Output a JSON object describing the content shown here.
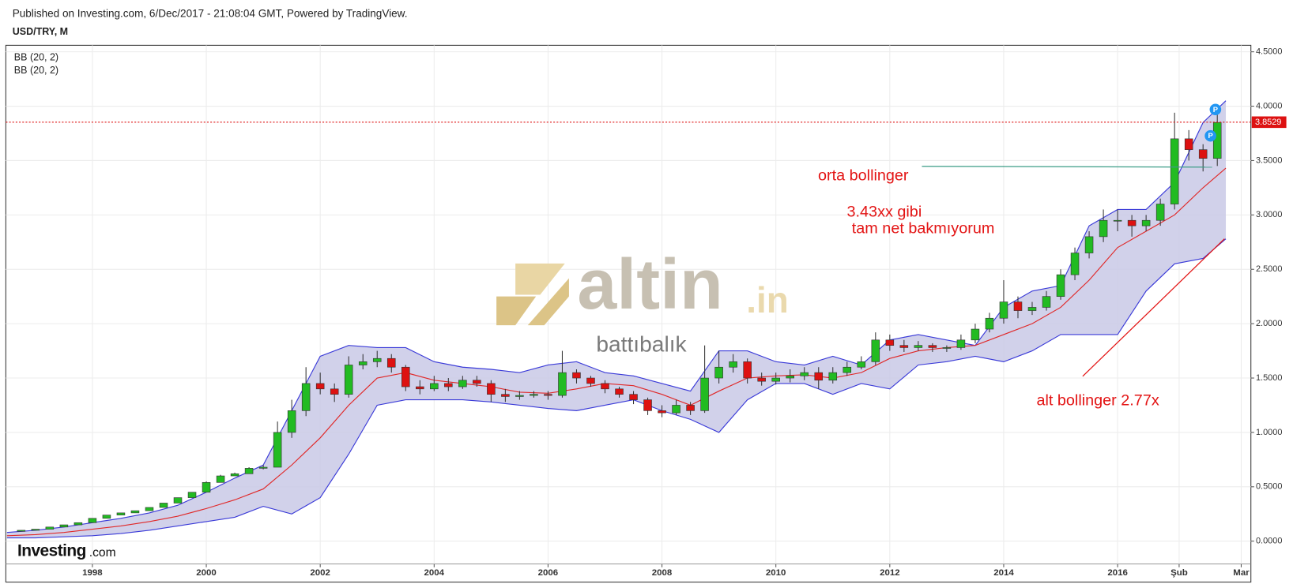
{
  "header": {
    "published": "Published on Investing.com, 6/Dec/2017 - 21:08:04 GMT, Powered by TradingView."
  },
  "watermark": {
    "brand": "altin",
    "suffix": ".in",
    "caption": "battıbalık",
    "logo": "Investing",
    "logo_suffix": ".com"
  },
  "chart_data": {
    "type": "candlestick",
    "title": "USD/TRY, M",
    "indicators": [
      "BB (20, 2)",
      "BB (20, 2)"
    ],
    "annotations": [
      "orta bollinger",
      "3.43xx gibi",
      "tam net bakmıyorum",
      "alt bollinger 2.77x"
    ],
    "markers": [
      "P",
      "P"
    ],
    "last_price": 3.8529,
    "up_color": "#22bb22",
    "down_color": "#dd1111",
    "grid": true,
    "xlim": [
      1996.48,
      2018.34
    ],
    "ylim": [
      -0.21,
      4.56
    ],
    "xticks": [
      1998,
      2000,
      2002,
      2004,
      2006,
      2008,
      2010,
      2012,
      2014,
      2016,
      {
        "value": 2017.08,
        "label": "Şub"
      },
      {
        "value": 2018.17,
        "label": "Mar"
      }
    ],
    "yticks": [
      {
        "value": 0,
        "label": "0.0000"
      },
      {
        "value": 0.5,
        "label": "0.5000"
      },
      {
        "value": 1,
        "label": "1.0000"
      },
      {
        "value": 1.5,
        "label": "1.5000"
      },
      {
        "value": 2,
        "label": "2.0000"
      },
      {
        "value": 2.5,
        "label": "2.5000"
      },
      {
        "value": 3,
        "label": "3.0000"
      },
      {
        "value": 3.5,
        "label": "3.5000"
      },
      {
        "value": 4,
        "label": "4.0000"
      },
      {
        "value": 4.5,
        "label": "4.5000"
      }
    ],
    "x": [
      1996.75,
      1997,
      1997.25,
      1997.5,
      1997.75,
      1998,
      1998.25,
      1998.5,
      1998.75,
      1999,
      1999.25,
      1999.5,
      1999.75,
      2000,
      2000.25,
      2000.5,
      2000.75,
      2001,
      2001.25,
      2001.5,
      2001.75,
      2002,
      2002.25,
      2002.5,
      2002.75,
      2003,
      2003.25,
      2003.5,
      2003.75,
      2004,
      2004.25,
      2004.5,
      2004.75,
      2005,
      2005.25,
      2005.5,
      2005.75,
      2006,
      2006.25,
      2006.5,
      2006.75,
      2007,
      2007.25,
      2007.5,
      2007.75,
      2008,
      2008.25,
      2008.5,
      2008.75,
      2009,
      2009.25,
      2009.5,
      2009.75,
      2010,
      2010.25,
      2010.5,
      2010.75,
      2011,
      2011.25,
      2011.5,
      2011.75,
      2012,
      2012.25,
      2012.5,
      2012.75,
      2013,
      2013.25,
      2013.5,
      2013.75,
      2014,
      2014.25,
      2014.5,
      2014.75,
      2015,
      2015.25,
      2015.5,
      2015.75,
      2016,
      2016.25,
      2016.5,
      2016.75,
      2017,
      2017.25,
      2017.5,
      2017.75
    ],
    "open": [
      0.09,
      0.1,
      0.11,
      0.13,
      0.15,
      0.17,
      0.21,
      0.24,
      0.26,
      0.28,
      0.31,
      0.35,
      0.4,
      0.45,
      0.54,
      0.6,
      0.62,
      0.67,
      0.68,
      1.0,
      1.2,
      1.45,
      1.4,
      1.35,
      1.62,
      1.65,
      1.68,
      1.6,
      1.42,
      1.4,
      1.45,
      1.42,
      1.48,
      1.45,
      1.35,
      1.33,
      1.34,
      1.35,
      1.34,
      1.55,
      1.5,
      1.45,
      1.4,
      1.35,
      1.3,
      1.2,
      1.18,
      1.25,
      1.2,
      1.5,
      1.6,
      1.65,
      1.5,
      1.47,
      1.5,
      1.52,
      1.55,
      1.48,
      1.55,
      1.6,
      1.65,
      1.85,
      1.8,
      1.78,
      1.8,
      1.78,
      1.78,
      1.85,
      1.95,
      2.05,
      2.2,
      2.12,
      2.15,
      2.25,
      2.45,
      2.65,
      2.8,
      2.95,
      2.95,
      2.9,
      2.95,
      3.1,
      3.7,
      3.6,
      3.52
    ],
    "high": [
      0.1,
      0.11,
      0.13,
      0.15,
      0.17,
      0.21,
      0.24,
      0.26,
      0.28,
      0.31,
      0.35,
      0.4,
      0.45,
      0.55,
      0.61,
      0.63,
      0.68,
      0.7,
      1.1,
      1.3,
      1.6,
      1.55,
      1.45,
      1.7,
      1.72,
      1.75,
      1.72,
      1.62,
      1.48,
      1.52,
      1.5,
      1.52,
      1.52,
      1.48,
      1.4,
      1.38,
      1.38,
      1.38,
      1.75,
      1.58,
      1.52,
      1.48,
      1.42,
      1.38,
      1.32,
      1.25,
      1.3,
      1.28,
      1.8,
      1.75,
      1.72,
      1.68,
      1.55,
      1.55,
      1.58,
      1.6,
      1.6,
      1.6,
      1.65,
      1.7,
      1.92,
      1.9,
      1.85,
      1.84,
      1.82,
      1.8,
      1.9,
      2.0,
      2.1,
      2.4,
      2.25,
      2.2,
      2.3,
      2.5,
      2.7,
      2.85,
      3.05,
      3.05,
      3.0,
      3.0,
      3.15,
      3.94,
      3.78,
      3.65,
      3.95
    ],
    "low": [
      0.09,
      0.1,
      0.11,
      0.13,
      0.15,
      0.17,
      0.21,
      0.24,
      0.26,
      0.28,
      0.31,
      0.35,
      0.4,
      0.45,
      0.54,
      0.6,
      0.62,
      0.66,
      0.68,
      0.95,
      1.15,
      1.35,
      1.28,
      1.32,
      1.58,
      1.6,
      1.55,
      1.38,
      1.35,
      1.38,
      1.38,
      1.4,
      1.42,
      1.28,
      1.28,
      1.3,
      1.32,
      1.3,
      1.32,
      1.45,
      1.42,
      1.36,
      1.32,
      1.26,
      1.16,
      1.14,
      1.16,
      1.16,
      1.18,
      1.45,
      1.55,
      1.45,
      1.43,
      1.44,
      1.46,
      1.48,
      1.4,
      1.45,
      1.52,
      1.58,
      1.62,
      1.75,
      1.74,
      1.75,
      1.74,
      1.74,
      1.76,
      1.82,
      1.92,
      2.0,
      2.05,
      2.08,
      2.12,
      2.22,
      2.4,
      2.6,
      2.75,
      2.85,
      2.8,
      2.85,
      2.9,
      3.05,
      3.5,
      3.4,
      3.45
    ],
    "close": [
      0.1,
      0.11,
      0.13,
      0.15,
      0.17,
      0.21,
      0.24,
      0.26,
      0.28,
      0.31,
      0.35,
      0.4,
      0.45,
      0.54,
      0.6,
      0.62,
      0.67,
      0.68,
      1.0,
      1.2,
      1.45,
      1.4,
      1.35,
      1.62,
      1.65,
      1.68,
      1.6,
      1.42,
      1.4,
      1.45,
      1.42,
      1.48,
      1.45,
      1.35,
      1.33,
      1.34,
      1.35,
      1.34,
      1.55,
      1.5,
      1.45,
      1.4,
      1.35,
      1.3,
      1.2,
      1.18,
      1.25,
      1.2,
      1.5,
      1.6,
      1.65,
      1.5,
      1.47,
      1.5,
      1.52,
      1.55,
      1.48,
      1.55,
      1.6,
      1.65,
      1.85,
      1.8,
      1.78,
      1.8,
      1.78,
      1.78,
      1.85,
      1.95,
      2.05,
      2.2,
      2.12,
      2.15,
      2.25,
      2.45,
      2.65,
      2.8,
      2.95,
      2.95,
      2.9,
      2.95,
      3.1,
      3.7,
      3.6,
      3.52,
      3.85
    ],
    "bollinger": {
      "band_color": "#3a3ad8",
      "middle_color": "#e02828",
      "fill": "#c9c9e6",
      "x": [
        1996.5,
        1997,
        1997.5,
        1998,
        1998.5,
        1999,
        1999.5,
        2000,
        2000.5,
        2001,
        2001.5,
        2002,
        2002.5,
        2003,
        2003.5,
        2004,
        2004.5,
        2005,
        2005.5,
        2006,
        2006.5,
        2007,
        2007.5,
        2008,
        2008.5,
        2009,
        2009.5,
        2010,
        2010.5,
        2011,
        2011.5,
        2012,
        2012.5,
        2013,
        2013.5,
        2014,
        2014.5,
        2015,
        2015.5,
        2016,
        2016.5,
        2017,
        2017.5,
        2017.9
      ],
      "upper": [
        0.08,
        0.1,
        0.13,
        0.17,
        0.21,
        0.26,
        0.33,
        0.45,
        0.58,
        0.7,
        1.2,
        1.7,
        1.8,
        1.78,
        1.78,
        1.65,
        1.6,
        1.58,
        1.55,
        1.62,
        1.65,
        1.55,
        1.52,
        1.45,
        1.38,
        1.75,
        1.75,
        1.65,
        1.62,
        1.7,
        1.62,
        1.85,
        1.9,
        1.85,
        1.8,
        2.15,
        2.3,
        2.35,
        2.9,
        3.05,
        3.05,
        3.3,
        3.85,
        4.05
      ],
      "middle": [
        0.05,
        0.06,
        0.08,
        0.11,
        0.14,
        0.18,
        0.23,
        0.3,
        0.38,
        0.48,
        0.7,
        0.95,
        1.25,
        1.5,
        1.55,
        1.48,
        1.45,
        1.42,
        1.37,
        1.36,
        1.4,
        1.45,
        1.43,
        1.35,
        1.25,
        1.38,
        1.5,
        1.52,
        1.53,
        1.5,
        1.55,
        1.68,
        1.75,
        1.78,
        1.8,
        1.9,
        2.0,
        2.15,
        2.4,
        2.7,
        2.85,
        3.0,
        3.25,
        3.43
      ],
      "lower": [
        0.03,
        0.03,
        0.04,
        0.05,
        0.07,
        0.1,
        0.14,
        0.18,
        0.22,
        0.32,
        0.25,
        0.4,
        0.8,
        1.25,
        1.3,
        1.3,
        1.3,
        1.28,
        1.25,
        1.22,
        1.2,
        1.25,
        1.3,
        1.2,
        1.12,
        1.0,
        1.3,
        1.45,
        1.45,
        1.35,
        1.45,
        1.4,
        1.62,
        1.65,
        1.7,
        1.65,
        1.75,
        1.9,
        1.9,
        1.9,
        2.3,
        2.55,
        2.6,
        2.78
      ]
    }
  }
}
